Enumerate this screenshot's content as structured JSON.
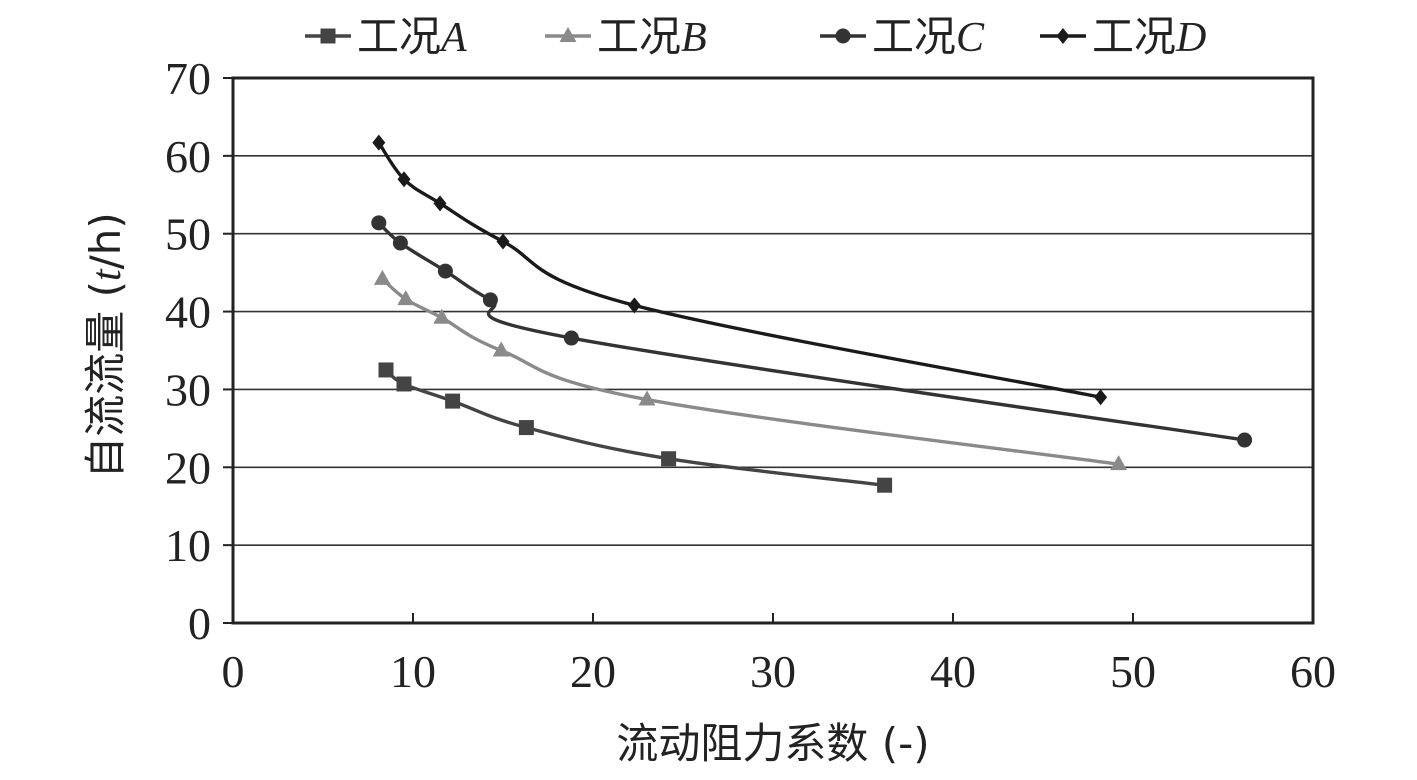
{
  "chart_data": {
    "type": "line",
    "title": "",
    "xlabel": "流动阻力系数 (-)",
    "ylabel_main": "自流流量 (",
    "ylabel_italic": "t",
    "ylabel_end": "/h)",
    "xlim": [
      0,
      60
    ],
    "ylim": [
      0,
      70
    ],
    "xticks": [
      0,
      10,
      20,
      30,
      40,
      50,
      60
    ],
    "yticks": [
      0,
      10,
      20,
      30,
      40,
      50,
      60,
      70
    ],
    "grid": "horizontal",
    "legend_position": "top",
    "series": [
      {
        "name_prefix": "工况",
        "name_suffix": "A",
        "color": "#444444",
        "marker": "square",
        "points": [
          [
            8.5,
            32.5
          ],
          [
            9.5,
            30.7
          ],
          [
            12.2,
            28.5
          ],
          [
            16.3,
            25.1
          ],
          [
            24.2,
            21.1
          ],
          [
            36.2,
            17.7
          ]
        ]
      },
      {
        "name_prefix": "工况",
        "name_suffix": "B",
        "color": "#8a8a8a",
        "marker": "triangle",
        "points": [
          [
            8.3,
            44.2
          ],
          [
            9.6,
            41.6
          ],
          [
            11.6,
            39.2
          ],
          [
            14.9,
            35.0
          ],
          [
            23.0,
            28.7
          ],
          [
            49.2,
            20.4
          ]
        ]
      },
      {
        "name_prefix": "工况",
        "name_suffix": "C",
        "color": "#333333",
        "marker": "circle",
        "points": [
          [
            8.1,
            51.4
          ],
          [
            9.3,
            48.8
          ],
          [
            11.8,
            45.2
          ],
          [
            14.3,
            41.5
          ],
          [
            18.8,
            36.6
          ],
          [
            56.2,
            23.5
          ]
        ]
      },
      {
        "name_prefix": "工况",
        "name_suffix": "D",
        "color": "#1a1a1a",
        "marker": "diamond",
        "points": [
          [
            8.1,
            61.7
          ],
          [
            9.5,
            57.0
          ],
          [
            11.5,
            53.9
          ],
          [
            15.0,
            49.0
          ],
          [
            22.3,
            40.8
          ],
          [
            48.2,
            29.0
          ]
        ]
      }
    ]
  }
}
